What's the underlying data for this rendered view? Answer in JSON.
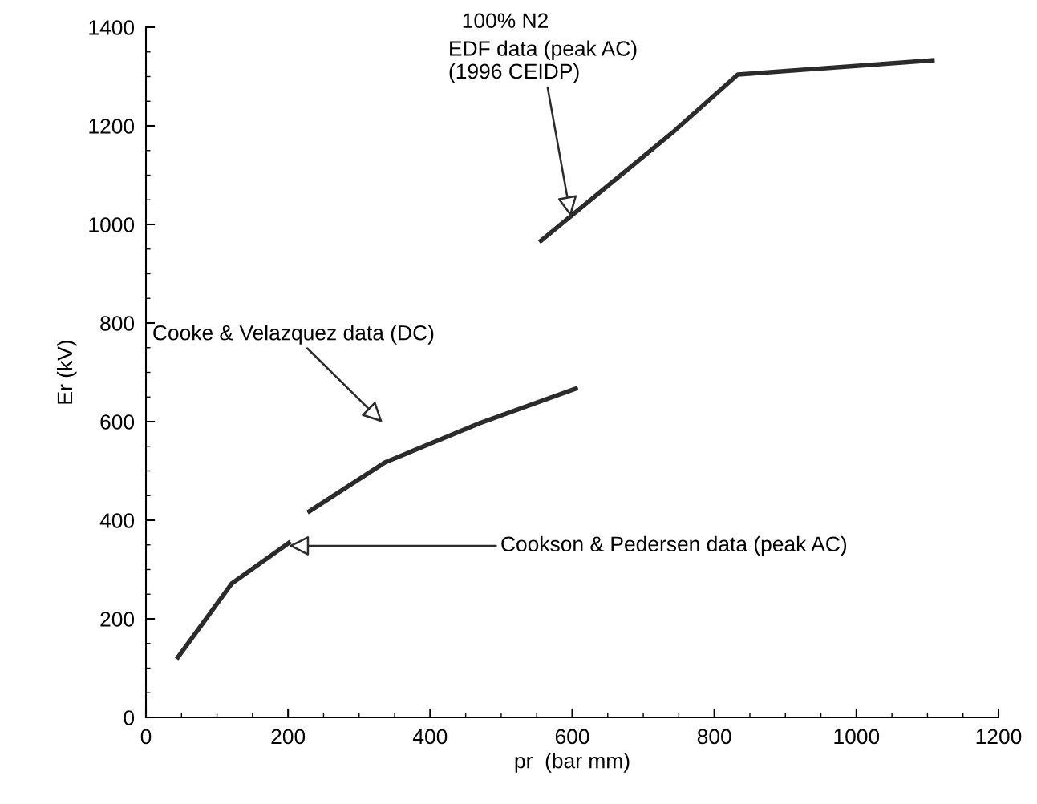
{
  "chart_data": {
    "type": "line",
    "title": "100% N2",
    "xlabel": "pr  (bar mm)",
    "ylabel": "Er (kV)",
    "series": [
      {
        "color": "#2b2b2b",
        "x": [
          45,
          121,
          201
        ],
        "values": [
          122,
          272,
          354
        ]
      },
      {
        "color": "#2b2b2b",
        "x": [
          230,
          336,
          470,
          605
        ],
        "values": [
          418,
          517,
          597,
          667
        ]
      },
      {
        "color": "#2b2b2b",
        "x": [
          556,
          740,
          833,
          1107
        ],
        "values": [
          967,
          1185,
          1304,
          1333
        ]
      }
    ],
    "annotations": [
      {
        "text": "EDF data (peak AC)\n(1996 CEIDP)",
        "x": 598,
        "y": 1016
      },
      "Cooke & Velazquez data (DC)",
      {
        "text": "Cookson & Pedersen data (peak AC)",
        "x": 201,
        "y": 348
      }
    ],
    "xlim": [
      0,
      1200
    ],
    "xticks": [
      0,
      200,
      400,
      600,
      800,
      1000,
      1200
    ],
    "ylim": [
      0,
      1400
    ],
    "yticks": [
      0,
      200,
      400,
      600,
      800,
      1000,
      1200,
      1400
    ],
    "grid": false,
    "legend": false,
    "marker": "none",
    "line_style": "solid"
  }
}
